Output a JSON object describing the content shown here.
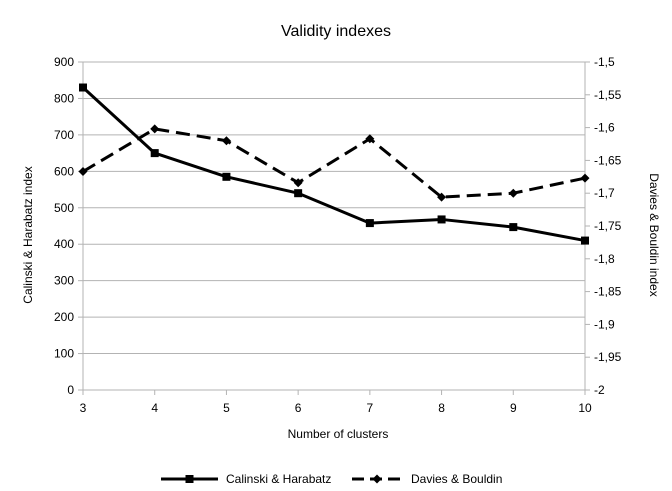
{
  "chart_data": {
    "type": "line",
    "title": "Validity indexes",
    "xlabel": "Number of clusters",
    "ylabel": "Calinski & Harabatz index",
    "y2label": "Davies & Bouldin index",
    "x": [
      3,
      4,
      5,
      6,
      7,
      8,
      9,
      10
    ],
    "xlim": [
      3,
      10
    ],
    "ylim": [
      0,
      900
    ],
    "y_ticks": [
      0,
      100,
      200,
      300,
      400,
      500,
      600,
      700,
      800,
      900
    ],
    "y2lim": [
      -2,
      -1.5
    ],
    "y2_ticks": [
      -2,
      -1.95,
      -1.9,
      -1.85,
      -1.8,
      -1.75,
      -1.7,
      -1.65,
      -1.6,
      -1.55,
      -1.5
    ],
    "y2_tick_labels": [
      "-2",
      "-1,95",
      "-1,9",
      "-1,85",
      "-1,8",
      "-1,75",
      "-1,7",
      "-1,65",
      "-1,6",
      "-1,55",
      "-1,5"
    ],
    "grid": true,
    "legend_position": "bottom",
    "series": [
      {
        "name": "Calinski & Harabatz",
        "axis": "left",
        "values": [
          830,
          650,
          585,
          540,
          458,
          468,
          447,
          410
        ],
        "color": "#000000",
        "style": "solid",
        "marker": "square"
      },
      {
        "name": "Davies & Bouldin",
        "axis": "right",
        "values": [
          -1.667,
          -1.602,
          -1.62,
          -1.684,
          -1.617,
          -1.706,
          -1.7,
          -1.677
        ],
        "color": "#000000",
        "style": "dashed",
        "marker": "diamond"
      }
    ]
  }
}
